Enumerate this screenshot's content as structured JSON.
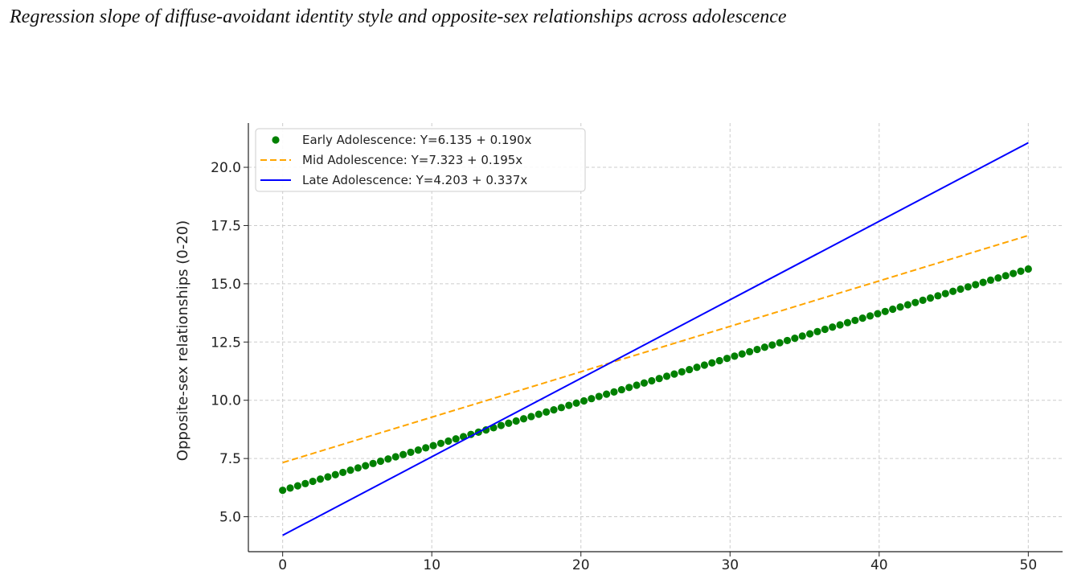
{
  "figure": {
    "caption": "Regression slope of diffuse-avoidant identity style and opposite-sex relationships across adolescence"
  },
  "chart_data": {
    "type": "line",
    "title": "",
    "xlabel": "",
    "ylabel": "Opposite-sex relationships (0-20)",
    "xlim": [
      -2.3,
      52.3
    ],
    "ylim": [
      3.5,
      21.9
    ],
    "x_ticks": [
      0,
      10,
      20,
      30,
      40,
      50
    ],
    "y_ticks": [
      5.0,
      7.5,
      10.0,
      12.5,
      15.0,
      17.5,
      20.0
    ],
    "grid": true,
    "legend_position": "top-left",
    "x_range": [
      0,
      50
    ],
    "series": [
      {
        "name": "Early Adolescence: Y=6.135 + 0.190x",
        "intercept": 6.135,
        "slope": 0.19,
        "style": "dots",
        "color": "#008000",
        "point_count": 100,
        "x": [
          0,
          50
        ],
        "y": [
          6.135,
          15.635
        ]
      },
      {
        "name": "Mid Adolescence: Y=7.323 + 0.195x",
        "intercept": 7.323,
        "slope": 0.195,
        "style": "dashed",
        "color": "#FFA500",
        "x": [
          0,
          50
        ],
        "y": [
          7.323,
          17.073
        ]
      },
      {
        "name": "Late Adolescence: Y=4.203 + 0.337x",
        "intercept": 4.203,
        "slope": 0.337,
        "style": "solid",
        "color": "#0000FF",
        "x": [
          0,
          50
        ],
        "y": [
          4.203,
          21.053
        ]
      }
    ]
  }
}
